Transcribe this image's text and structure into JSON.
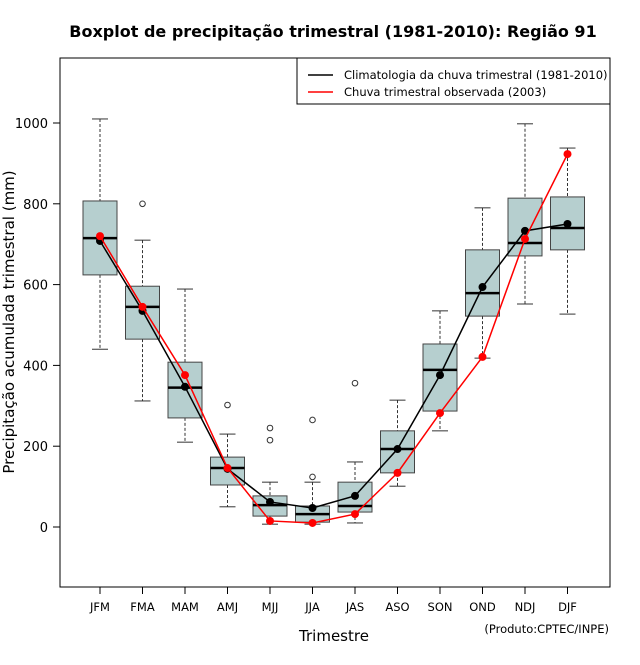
{
  "chart_data": {
    "type": "boxplot",
    "title": "Boxplot de precipitação trimestral (1981-2010): Região 91",
    "xlabel": "Trimestre",
    "ylabel": "Precipitação acumulada trimestral (mm)",
    "ylim": [
      -150,
      1160
    ],
    "yticks": [
      0,
      200,
      400,
      600,
      800,
      1000
    ],
    "ytick_labels": [
      "0",
      "200",
      "400",
      "600",
      "800",
      "1000"
    ],
    "categories": [
      "JFM",
      "FMA",
      "MAM",
      "AMJ",
      "MJJ",
      "JJA",
      "JAS",
      "ASO",
      "SON",
      "OND",
      "NDJ",
      "DJF"
    ],
    "boxes": [
      {
        "whisker_low": 440,
        "q1": 624,
        "median": 715,
        "q3": 807,
        "whisker_high": 1010,
        "outliers": []
      },
      {
        "whisker_low": 312,
        "q1": 465,
        "median": 545,
        "q3": 596,
        "whisker_high": 710,
        "outliers": [
          800
        ]
      },
      {
        "whisker_low": 210,
        "q1": 270,
        "median": 345,
        "q3": 408,
        "whisker_high": 589,
        "outliers": []
      },
      {
        "whisker_low": 50,
        "q1": 104,
        "median": 146,
        "q3": 173,
        "whisker_high": 230,
        "outliers": [
          302
        ]
      },
      {
        "whisker_low": 7,
        "q1": 27,
        "median": 54,
        "q3": 77,
        "whisker_high": 111,
        "outliers": [
          245,
          215
        ]
      },
      {
        "whisker_low": 7,
        "q1": 12,
        "median": 32,
        "q3": 52,
        "whisker_high": 111,
        "outliers": [
          265,
          124
        ]
      },
      {
        "whisker_low": 10,
        "q1": 37,
        "median": 52,
        "q3": 111,
        "whisker_high": 161,
        "outliers": [
          356
        ]
      },
      {
        "whisker_low": 101,
        "q1": 134,
        "median": 193,
        "q3": 238,
        "whisker_high": 314,
        "outliers": []
      },
      {
        "whisker_low": 238,
        "q1": 287,
        "median": 389,
        "q3": 453,
        "whisker_high": 535,
        "outliers": []
      },
      {
        "whisker_low": 418,
        "q1": 522,
        "median": 579,
        "q3": 686,
        "whisker_high": 790,
        "outliers": []
      },
      {
        "whisker_low": 552,
        "q1": 671,
        "median": 703,
        "q3": 814,
        "whisker_high": 998,
        "outliers": []
      },
      {
        "whisker_low": 527,
        "q1": 686,
        "median": 740,
        "q3": 817,
        "whisker_high": 938,
        "outliers": []
      }
    ],
    "series": [
      {
        "name": "Climatologia da chuva trimestral (1981-2010)",
        "color": "#000000",
        "values": [
          708,
          535,
          347,
          144,
          62,
          47,
          77,
          193,
          376,
          594,
          733,
          750
        ]
      },
      {
        "name": "Chuva trimestral observada (2003)",
        "color": "#ff0000",
        "values": [
          720,
          545,
          376,
          146,
          15,
          10,
          32,
          134,
          282,
          421,
          713,
          923
        ]
      }
    ],
    "box_color": "#b6cfcf",
    "legend_position": "top-right",
    "credit": "(Produto:CPTEC/INPE)"
  }
}
